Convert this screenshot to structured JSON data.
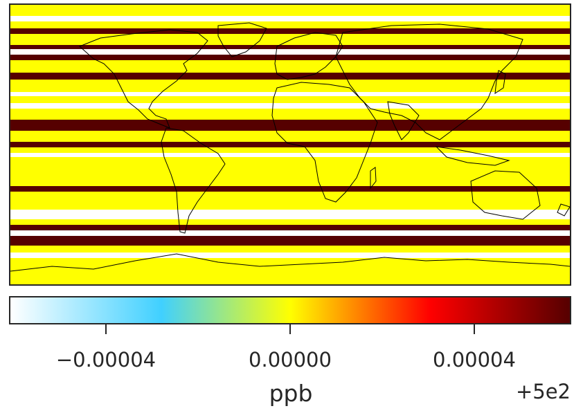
{
  "map": {
    "projection": "PlateCarree",
    "field": "uniform latitude bands",
    "band_values_note": "horizontal stripes alternate among three levels",
    "band_colors": {
      "low": "#ffffff",
      "mid": "#ffff00",
      "high": "#560000"
    },
    "coastline_color": "#000000"
  },
  "colorbar": {
    "label": "ppb",
    "offset_label": "+5e2",
    "ticks": [
      "−0.00004",
      "0.00000",
      "0.00004"
    ],
    "tick_values": [
      -4e-05,
      0.0,
      4e-05
    ],
    "range": [
      -6e-05,
      6e-05
    ],
    "colormap_stops": [
      "#ffffff",
      "#40d0ff",
      "#ffff00",
      "#ff0000",
      "#560000"
    ]
  }
}
